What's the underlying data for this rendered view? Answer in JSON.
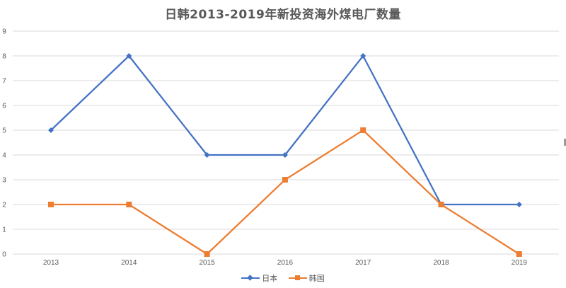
{
  "chart_data": {
    "type": "line",
    "title": "日韩2013-2019年新投资海外煤电厂数量",
    "categories": [
      "2013",
      "2014",
      "2015",
      "2016",
      "2017",
      "2018",
      "2019"
    ],
    "series": [
      {
        "name": "日本",
        "color": "#4472c4",
        "marker": "diamond",
        "values": [
          5,
          8,
          4,
          4,
          8,
          2,
          2
        ]
      },
      {
        "name": "韩国",
        "color": "#ed7d31",
        "marker": "square",
        "values": [
          2,
          2,
          0,
          3,
          5,
          2,
          0
        ]
      }
    ],
    "ylim": [
      0,
      9
    ],
    "yticks": [
      "0",
      "1",
      "2",
      "3",
      "4",
      "5",
      "6",
      "7",
      "8",
      "9"
    ],
    "grid": true,
    "legend_position": "bottom"
  }
}
